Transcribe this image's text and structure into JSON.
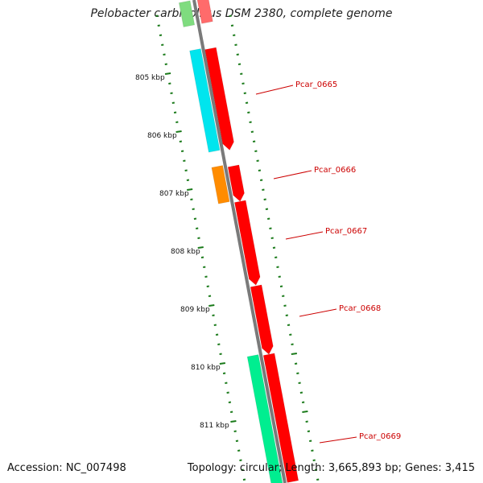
{
  "title": "Pelobacter carbinolicus DSM 2380, complete genome",
  "footer": {
    "accession": "Accession: NC_007498",
    "info": "Topology: circular; Length: 3,665,893 bp; Genes: 3,415"
  },
  "colors": {
    "backbone": "#7a7a7a",
    "ticks": "#1a7a1a",
    "gene_label": "#cc0000",
    "red": "#ff0000",
    "cyan": "#00e5ee",
    "orange": "#ff8c00",
    "springgreen": "#00ee90",
    "green": "#2ecc40"
  },
  "kbp_labels": [
    "805 kbp",
    "806 kbp",
    "807 kbp",
    "808 kbp",
    "809 kbp",
    "810 kbp",
    "811 kbp"
  ],
  "gene_labels": [
    "Pcar_0665",
    "Pcar_0666",
    "Pcar_0667",
    "Pcar_0668",
    "Pcar_0669"
  ]
}
